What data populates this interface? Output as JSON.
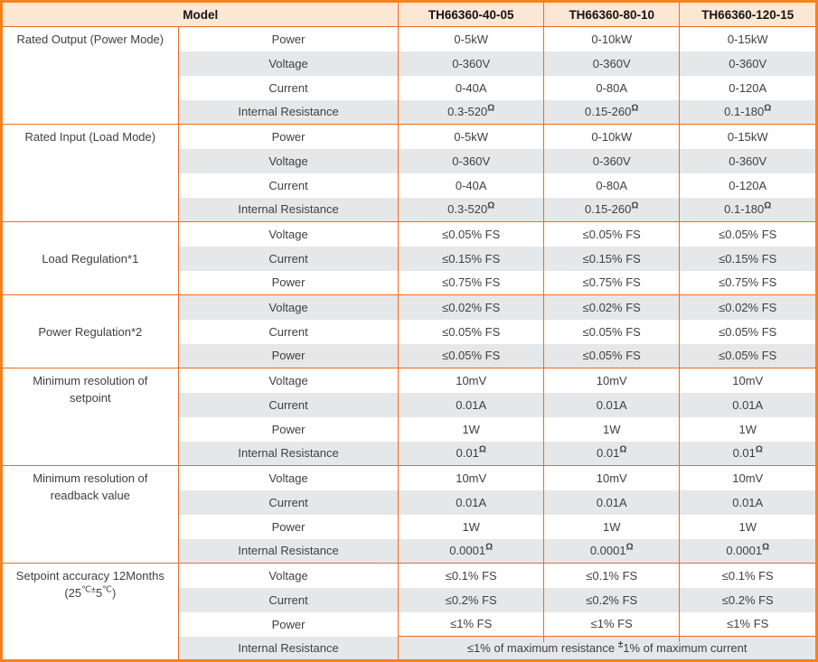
{
  "colors": {
    "accent_orange_outer": "#F5821F",
    "grid_orange": "#ED6C1E",
    "header_bg": "#FCE6D4",
    "stripe_gray": "#E6E7E8",
    "text_dark": "#3F3F42"
  },
  "header": {
    "model_label": "Model",
    "models": [
      "TH66360-40-05",
      "TH66360-80-10",
      "TH66360-120-15"
    ]
  },
  "groups": [
    {
      "label": "Rated Output (Power Mode)",
      "rows": [
        {
          "param": "Power",
          "values": [
            "0-5kW",
            "0-10kW",
            "0-15kW"
          ]
        },
        {
          "param": "Voltage",
          "values": [
            "0-360V",
            "0-360V",
            "0-360V"
          ]
        },
        {
          "param": "Current",
          "values": [
            "0-40A",
            "0-80A",
            "0-120A"
          ]
        },
        {
          "param": "Internal Resistance",
          "values": [
            "0.3-520",
            "0.15-260",
            "0.1-180"
          ],
          "sup": "Ω"
        }
      ]
    },
    {
      "label": "Rated Input (Load Mode)",
      "rows": [
        {
          "param": "Power",
          "values": [
            "0-5kW",
            "0-10kW",
            "0-15kW"
          ]
        },
        {
          "param": "Voltage",
          "values": [
            "0-360V",
            "0-360V",
            "0-360V"
          ]
        },
        {
          "param": "Current",
          "values": [
            "0-40A",
            "0-80A",
            "0-120A"
          ]
        },
        {
          "param": "Internal Resistance",
          "values": [
            "0.3-520",
            "0.15-260",
            "0.1-180"
          ],
          "sup": "Ω"
        }
      ]
    },
    {
      "label": "Load Regulation*1",
      "rows": [
        {
          "param": "Voltage",
          "values": [
            "≤0.05% FS",
            "≤0.05% FS",
            "≤0.05% FS"
          ]
        },
        {
          "param": "Current",
          "values": [
            "≤0.15% FS",
            "≤0.15% FS",
            "≤0.15% FS"
          ]
        },
        {
          "param": "Power",
          "values": [
            "≤0.75% FS",
            "≤0.75% FS",
            "≤0.75% FS"
          ]
        }
      ]
    },
    {
      "label": "Power Regulation*2",
      "rows": [
        {
          "param": "Voltage",
          "values": [
            "≤0.02% FS",
            "≤0.02% FS",
            "≤0.02% FS"
          ]
        },
        {
          "param": "Current",
          "values": [
            "≤0.05% FS",
            "≤0.05% FS",
            "≤0.05% FS"
          ]
        },
        {
          "param": "Power",
          "values": [
            "≤0.05% FS",
            "≤0.05% FS",
            "≤0.05% FS"
          ]
        }
      ]
    },
    {
      "label_line1": "Minimum resolution of",
      "label_line2": "setpoint",
      "rows": [
        {
          "param": "Voltage",
          "values": [
            "10mV",
            "10mV",
            "10mV"
          ]
        },
        {
          "param": "Current",
          "values": [
            "0.01A",
            "0.01A",
            "0.01A"
          ]
        },
        {
          "param": "Power",
          "values": [
            "1W",
            "1W",
            "1W"
          ]
        },
        {
          "param": "Internal Resistance",
          "values": [
            "0.01",
            "0.01",
            "0.01"
          ],
          "sup": "Ω"
        }
      ]
    },
    {
      "label_line1": "Minimum resolution of",
      "label_line2": "readback value",
      "rows": [
        {
          "param": "Voltage",
          "values": [
            "10mV",
            "10mV",
            "10mV"
          ]
        },
        {
          "param": "Current",
          "values": [
            "0.01A",
            "0.01A",
            "0.01A"
          ]
        },
        {
          "param": "Power",
          "values": [
            "1W",
            "1W",
            "1W"
          ]
        },
        {
          "param": "Internal Resistance",
          "values": [
            "0.0001",
            "0.0001",
            "0.0001"
          ],
          "sup": "Ω"
        }
      ]
    },
    {
      "label_line1": "Setpoint accuracy 12Months",
      "label_line2_parts": {
        "a": "(25",
        "sup1": "℃±",
        "b": "5",
        "sup2": "℃",
        "c": ")"
      },
      "rows": [
        {
          "param": "Voltage",
          "values": [
            "≤0.1% FS",
            "≤0.1% FS",
            "≤0.1% FS"
          ]
        },
        {
          "param": "Current",
          "values": [
            "≤0.2% FS",
            "≤0.2% FS",
            "≤0.2% FS"
          ]
        },
        {
          "param": "Power",
          "values": [
            "≤1% FS",
            "≤1% FS",
            "≤1% FS"
          ]
        },
        {
          "param": "Internal Resistance",
          "merged": {
            "pre": "≤1% of maximum resistance ",
            "sup": "±",
            "post": "1% of maximum current"
          }
        }
      ]
    }
  ]
}
